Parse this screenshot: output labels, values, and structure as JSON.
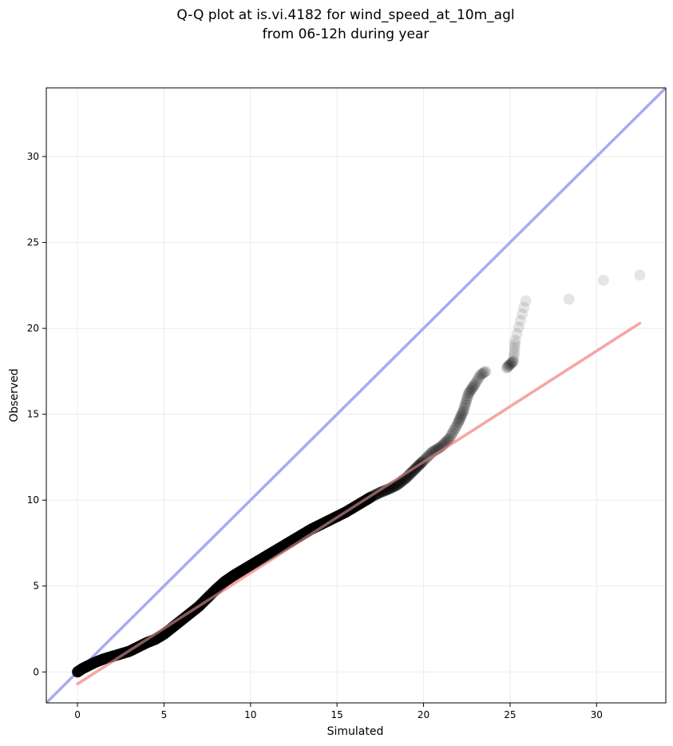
{
  "chart_data": {
    "type": "scatter",
    "title": "Q-Q plot at is.vi.4182 for wind_speed_at_10m_agl",
    "subtitle": "from 06-12h during year",
    "xlabel": "Simulated",
    "ylabel": "Observed",
    "xlim": [
      -1.8,
      34.0
    ],
    "ylim": [
      -1.8,
      34.0
    ],
    "x_ticks": [
      0,
      5,
      10,
      15,
      20,
      25,
      30
    ],
    "y_ticks": [
      0,
      5,
      10,
      15,
      20,
      25,
      30
    ],
    "grid": true,
    "colors": {
      "points": "#000000",
      "identity_line": "#aaaaf2",
      "fit_line": "#f4a6a6",
      "grid": "#ebebeb"
    },
    "series": [
      {
        "kind": "quantiles",
        "x": [
          0.0,
          0.3,
          0.6,
          1.0,
          1.5,
          2.0,
          2.5,
          3.0,
          3.5,
          4.0,
          4.5,
          5.0,
          5.5,
          6.0,
          6.5,
          7.0,
          7.5,
          8.0,
          8.5,
          9.0,
          9.5,
          10.0,
          10.5,
          11.0,
          11.5,
          12.0,
          12.5,
          13.0,
          13.5,
          14.0,
          14.5,
          15.0,
          15.5,
          16.0,
          16.5,
          17.0,
          17.5,
          18.0,
          18.5,
          19.0,
          19.5,
          20.0,
          20.5,
          21.0,
          21.5,
          22.0,
          22.3,
          22.6,
          23.0,
          23.3,
          23.6,
          24.8,
          25.0,
          25.2,
          25.3,
          25.9,
          28.4,
          30.4,
          32.5
        ],
        "y": [
          0.0,
          0.2,
          0.35,
          0.55,
          0.75,
          0.9,
          1.05,
          1.2,
          1.45,
          1.7,
          1.9,
          2.2,
          2.6,
          3.0,
          3.4,
          3.8,
          4.3,
          4.8,
          5.25,
          5.6,
          5.9,
          6.2,
          6.5,
          6.8,
          7.1,
          7.4,
          7.7,
          8.0,
          8.3,
          8.55,
          8.8,
          9.05,
          9.3,
          9.6,
          9.9,
          10.2,
          10.45,
          10.65,
          10.9,
          11.3,
          11.8,
          12.3,
          12.8,
          13.1,
          13.6,
          14.5,
          15.2,
          16.2,
          16.8,
          17.3,
          17.5,
          17.7,
          17.9,
          18.1,
          19.3,
          21.6,
          21.7,
          22.8,
          23.1
        ]
      }
    ],
    "reference_lines": [
      {
        "kind": "identity",
        "from": [
          -1.8,
          -1.8
        ],
        "to": [
          34.0,
          34.0
        ]
      },
      {
        "kind": "fit",
        "from": [
          0.0,
          -0.7
        ],
        "to": [
          32.5,
          20.3
        ]
      }
    ]
  }
}
